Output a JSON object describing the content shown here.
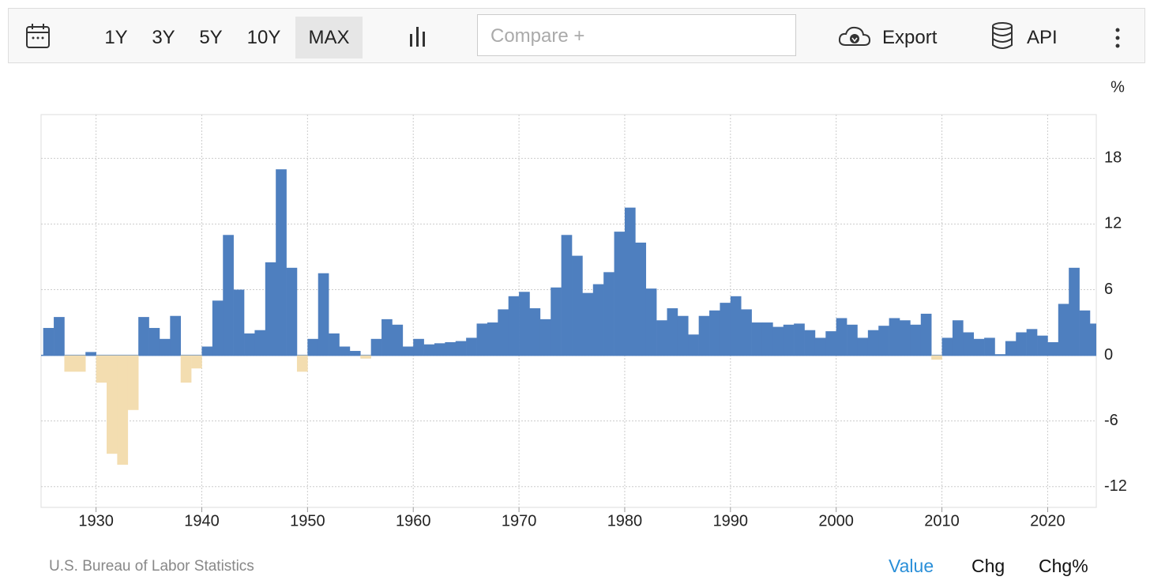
{
  "toolbar": {
    "ranges": [
      "1Y",
      "3Y",
      "5Y",
      "10Y",
      "MAX"
    ],
    "active_range": "MAX",
    "compare_placeholder": "Compare +",
    "export": "Export",
    "api": "API"
  },
  "chart_data": {
    "type": "bar",
    "unit": "%",
    "x": [
      1925,
      1926,
      1927,
      1928,
      1929,
      1930,
      1931,
      1932,
      1933,
      1934,
      1935,
      1936,
      1937,
      1938,
      1939,
      1940,
      1941,
      1942,
      1943,
      1944,
      1945,
      1946,
      1947,
      1948,
      1949,
      1950,
      1951,
      1952,
      1953,
      1954,
      1955,
      1956,
      1957,
      1958,
      1959,
      1960,
      1961,
      1962,
      1963,
      1964,
      1965,
      1966,
      1967,
      1968,
      1969,
      1970,
      1971,
      1972,
      1973,
      1974,
      1975,
      1976,
      1977,
      1978,
      1979,
      1980,
      1981,
      1982,
      1983,
      1984,
      1985,
      1986,
      1987,
      1988,
      1989,
      1990,
      1991,
      1992,
      1993,
      1994,
      1995,
      1996,
      1997,
      1998,
      1999,
      2000,
      2001,
      2002,
      2003,
      2004,
      2005,
      2006,
      2007,
      2008,
      2009,
      2010,
      2011,
      2012,
      2013,
      2014,
      2015,
      2016,
      2017,
      2018,
      2019,
      2020,
      2021,
      2022,
      2023,
      2024
    ],
    "values": [
      2.5,
      3.5,
      -1.5,
      -1.5,
      0.3,
      -2.5,
      -9,
      -10,
      -5,
      3.5,
      2.5,
      1.5,
      3.6,
      -2.5,
      -1.2,
      0.8,
      5,
      11,
      6,
      2,
      2.3,
      8.5,
      17,
      8,
      -1.5,
      1.5,
      7.5,
      2,
      0.8,
      0.4,
      -0.3,
      1.5,
      3.3,
      2.8,
      0.8,
      1.5,
      1,
      1.1,
      1.2,
      1.3,
      1.6,
      2.9,
      3,
      4.2,
      5.4,
      5.8,
      4.3,
      3.3,
      6.2,
      11,
      9.1,
      5.7,
      6.5,
      7.6,
      11.3,
      13.5,
      10.3,
      6.1,
      3.2,
      4.3,
      3.6,
      1.9,
      3.6,
      4.1,
      4.8,
      5.4,
      4.2,
      3,
      3,
      2.6,
      2.8,
      2.9,
      2.3,
      1.6,
      2.2,
      3.4,
      2.8,
      1.6,
      2.3,
      2.7,
      3.4,
      3.2,
      2.8,
      3.8,
      -0.4,
      1.6,
      3.2,
      2.1,
      1.5,
      1.6,
      0.1,
      1.3,
      2.1,
      2.4,
      1.8,
      1.2,
      4.7,
      8,
      4.1,
      2.9
    ],
    "color": "#4e7fbf",
    "negative_color": "#f3ddb0",
    "xlim": [
      1924.8,
      2024.6
    ],
    "xticks": [
      1930,
      1940,
      1950,
      1960,
      1970,
      1980,
      1990,
      2000,
      2010,
      2020
    ],
    "ylim": [
      -13.9,
      22
    ],
    "yticks": [
      -12,
      -6,
      0,
      6,
      12,
      18
    ],
    "grid": true
  },
  "footer": {
    "source": "U.S. Bureau of Labor Statistics",
    "modes": [
      "Value",
      "Chg",
      "Chg%"
    ],
    "active_mode": "Value"
  }
}
